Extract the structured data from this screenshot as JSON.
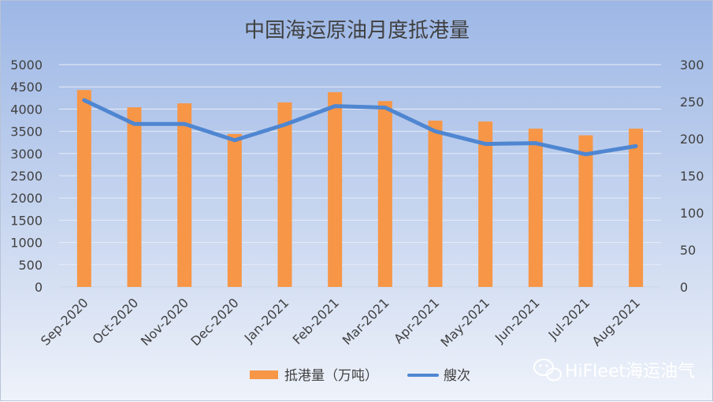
{
  "chart_data": {
    "type": "bar",
    "title": "中国海运原油月度抵港量",
    "categories": [
      "Sep-2020",
      "Oct-2020",
      "Nov-2020",
      "Dec-2020",
      "Jan-2021",
      "Feb-2021",
      "Mar-2021",
      "Apr-2021",
      "May-2021",
      "Jun-2021",
      "Jul-2021",
      "Aug-2021"
    ],
    "series": [
      {
        "name": "抵港量（万吨）",
        "type": "bar",
        "axis": "left",
        "color": "#f79646",
        "values": [
          4430,
          4040,
          4130,
          3440,
          4150,
          4380,
          4180,
          3740,
          3720,
          3560,
          3410,
          3560
        ]
      },
      {
        "name": "艘次",
        "type": "line",
        "axis": "right",
        "color": "#4f86d1",
        "values": [
          252,
          220,
          220,
          198,
          219,
          244,
          242,
          210,
          193,
          194,
          179,
          190
        ]
      }
    ],
    "y_left": {
      "min": 0,
      "max": 5000,
      "ticks": [
        "0",
        "500",
        "1000",
        "1500",
        "2000",
        "2500",
        "3000",
        "3500",
        "4000",
        "4500",
        "5000"
      ]
    },
    "y_right": {
      "min": 0,
      "max": 300,
      "ticks": [
        "0",
        "50",
        "100",
        "150",
        "200",
        "250",
        "300"
      ]
    },
    "grid": true,
    "legend_position": "bottom"
  },
  "watermark": {
    "text": "HiFleet海运油气",
    "icon": "wechat-icon"
  }
}
